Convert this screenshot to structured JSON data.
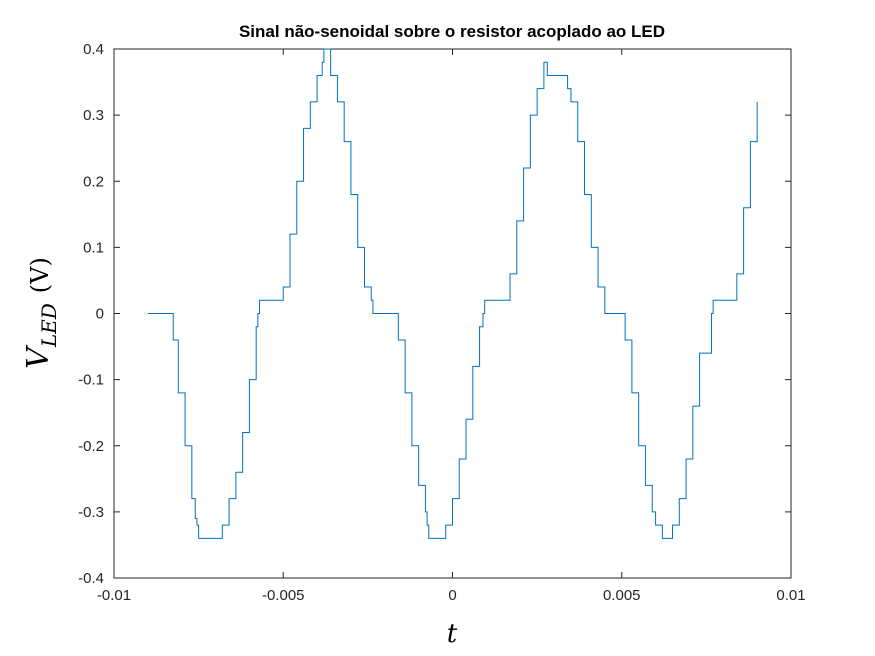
{
  "chart_data": {
    "type": "line",
    "title": "Sinal não-senoidal sobre o resistor acoplado ao LED",
    "xlabel": "t",
    "ylabel": {
      "main": "V",
      "subscript": "LED",
      "unit": "(V)"
    },
    "xlim": [
      -0.01,
      0.01
    ],
    "ylim": [
      -0.4,
      0.4
    ],
    "x_ticks": [
      -0.01,
      -0.005,
      0,
      0.005,
      0.01
    ],
    "x_tick_labels": [
      "-0.01",
      "-0.005",
      "0",
      "0.005",
      "0.01"
    ],
    "y_ticks": [
      -0.4,
      -0.3,
      -0.2,
      -0.1,
      0,
      0.1,
      0.2,
      0.3,
      0.4
    ],
    "y_tick_labels": [
      "-0.4",
      "-0.3",
      "-0.2",
      "-0.1",
      "0",
      "0.1",
      "0.2",
      "0.3",
      "0.4"
    ],
    "grid": false,
    "line_color": "#0072BD",
    "series": [
      {
        "x": [
          -0.009,
          -0.0083,
          -0.00825,
          -0.0081,
          -0.0079,
          -0.0077,
          -0.0076,
          -0.00755,
          -0.0075,
          -0.0069,
          -0.0068,
          -0.0066,
          -0.0064,
          -0.0062,
          -0.006,
          -0.0058,
          -0.00575,
          -0.0057,
          -0.0051,
          -0.005,
          -0.0048,
          -0.0046,
          -0.0044,
          -0.0042,
          -0.004,
          -0.00385,
          -0.0038,
          -0.00375,
          -0.0036,
          -0.0034,
          -0.0032,
          -0.003,
          -0.0028,
          -0.0026,
          -0.0024,
          -0.00235,
          -0.0023,
          -0.0017,
          -0.0016,
          -0.0014,
          -0.0012,
          -0.001,
          -0.0008,
          -0.00075,
          -0.0007,
          -0.0003,
          -0.0002,
          0.0,
          0.0002,
          0.0004,
          0.0006,
          0.0008,
          0.0009,
          0.00095,
          0.001,
          0.0016,
          0.0017,
          0.0019,
          0.0021,
          0.0023,
          0.0025,
          0.0027,
          0.00275,
          0.0028,
          0.0034,
          0.0035,
          0.0037,
          0.0039,
          0.0041,
          0.0043,
          0.0045,
          0.00495,
          0.005,
          0.0051,
          0.0053,
          0.0055,
          0.0057,
          0.0059,
          0.006,
          0.0062,
          0.00625,
          0.0063,
          0.0064,
          0.0065,
          0.0067,
          0.0069,
          0.0071,
          0.0073,
          0.00765,
          0.0077,
          0.0083,
          0.0084,
          0.0086,
          0.0088,
          0.009
        ],
        "y": [
          0.0,
          0.0,
          -0.04,
          -0.12,
          -0.2,
          -0.28,
          -0.31,
          -0.32,
          -0.34,
          -0.34,
          -0.32,
          -0.28,
          -0.24,
          -0.18,
          -0.1,
          -0.02,
          0.0,
          0.02,
          0.02,
          0.04,
          0.12,
          0.2,
          0.28,
          0.32,
          0.36,
          0.38,
          0.4,
          0.4,
          0.36,
          0.32,
          0.26,
          0.18,
          0.1,
          0.04,
          0.02,
          0.0,
          0.0,
          0.0,
          -0.04,
          -0.12,
          -0.2,
          -0.26,
          -0.3,
          -0.32,
          -0.34,
          -0.34,
          -0.32,
          -0.28,
          -0.22,
          -0.16,
          -0.08,
          -0.02,
          0.0,
          0.02,
          0.02,
          0.02,
          0.06,
          0.14,
          0.22,
          0.3,
          0.34,
          0.38,
          0.38,
          0.36,
          0.34,
          0.32,
          0.26,
          0.18,
          0.1,
          0.04,
          0.0,
          0.0,
          0.0,
          -0.04,
          -0.12,
          -0.2,
          -0.26,
          -0.3,
          -0.32,
          -0.34,
          -0.34,
          -0.34,
          -0.34,
          -0.32,
          -0.28,
          -0.22,
          -0.14,
          -0.06,
          0.0,
          0.02,
          0.02,
          0.06,
          0.16,
          0.26,
          0.32
        ]
      }
    ]
  }
}
